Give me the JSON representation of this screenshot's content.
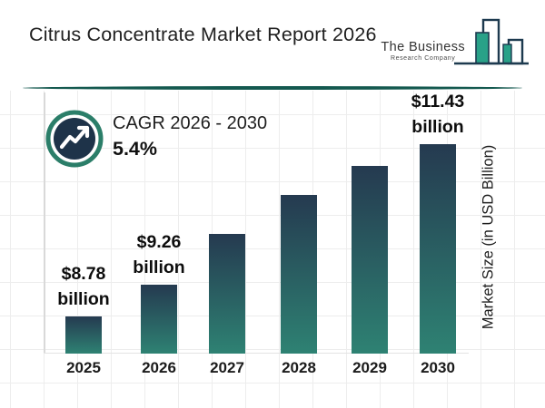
{
  "page": {
    "title": "Citrus Concentrate Market Report 2026"
  },
  "logo": {
    "name_line1": "The Business",
    "name_line2": "Research Company"
  },
  "cagr_badge": {
    "label": "CAGR 2026 - 2030",
    "value": "5.4%",
    "icon": "trending-up-icon"
  },
  "chart_data": {
    "type": "bar",
    "title": "Citrus Concentrate Market Report 2026",
    "categories": [
      "2025",
      "2026",
      "2027",
      "2028",
      "2029",
      "2030"
    ],
    "values": [
      8.78,
      9.26,
      10.05,
      10.65,
      11.1,
      11.43
    ],
    "labeled_values": {
      "2025": 8.78,
      "2026": 9.26,
      "2030": 11.43
    },
    "value_labels": [
      [
        "$8.78",
        "billion"
      ],
      [
        "$9.26",
        "billion"
      ],
      null,
      null,
      null,
      [
        "$11.43",
        "billion"
      ]
    ],
    "xlabel": "",
    "ylabel": "Market Size (in USD Billion)",
    "ylim": [
      8.2,
      11.6
    ],
    "grid": true,
    "legend": false,
    "annotation": "CAGR 2026 - 2030: 5.4%",
    "colors": {
      "bar_gradient_top": "#253a50",
      "bar_gradient_bottom": "#2e8273",
      "accent_teal": "#2b7e69",
      "badge_navy": "#1e3349",
      "divider_teal": "#14594f",
      "logo_teal": "#29a188",
      "logo_navy": "#1d3a4f"
    }
  }
}
